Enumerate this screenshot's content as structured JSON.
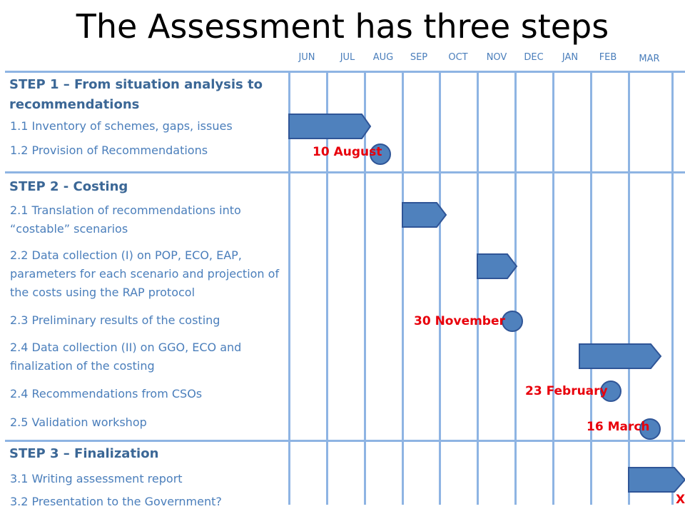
{
  "title": "The Assessment has three steps",
  "months": [
    "JUN",
    "JUL",
    "AUG",
    "SEP",
    "OCT",
    "NOV",
    "DEC",
    "JAN",
    "FEB",
    "MAR"
  ],
  "steps": [
    {
      "title": "STEP 1 – From situation analysis to recommendations",
      "tasks": [
        "1.1 Inventory of schemes, gaps, issues",
        "1.2 Provision of Recommendations"
      ]
    },
    {
      "title": "STEP 2 - Costing",
      "tasks": [
        "2.1 Translation of recommendations into “costable” scenarios",
        "2.2 Data collection (I) on POP, ECO, EAP, parameters for each scenario and projection of the costs using the RAP protocol",
        "2.3 Preliminary results of the costing",
        "2.4 Data collection (II) on GGO, ECO and finalization of the costing",
        "2.4 Recommendations from CSOs",
        "2.5 Validation workshop"
      ]
    },
    {
      "title": "STEP 3 – Finalization",
      "tasks": [
        "3.1 Writing assessment report",
        "3.2 Presentation to the Government?"
      ]
    }
  ],
  "milestones": [
    "10 August",
    "30 November",
    "23 February",
    "16 March",
    "X"
  ],
  "colors": {
    "accent": "#4f81bd",
    "grid": "#8eb4e3",
    "text": "#4a7ebb",
    "milestone": "#e8000b"
  }
}
